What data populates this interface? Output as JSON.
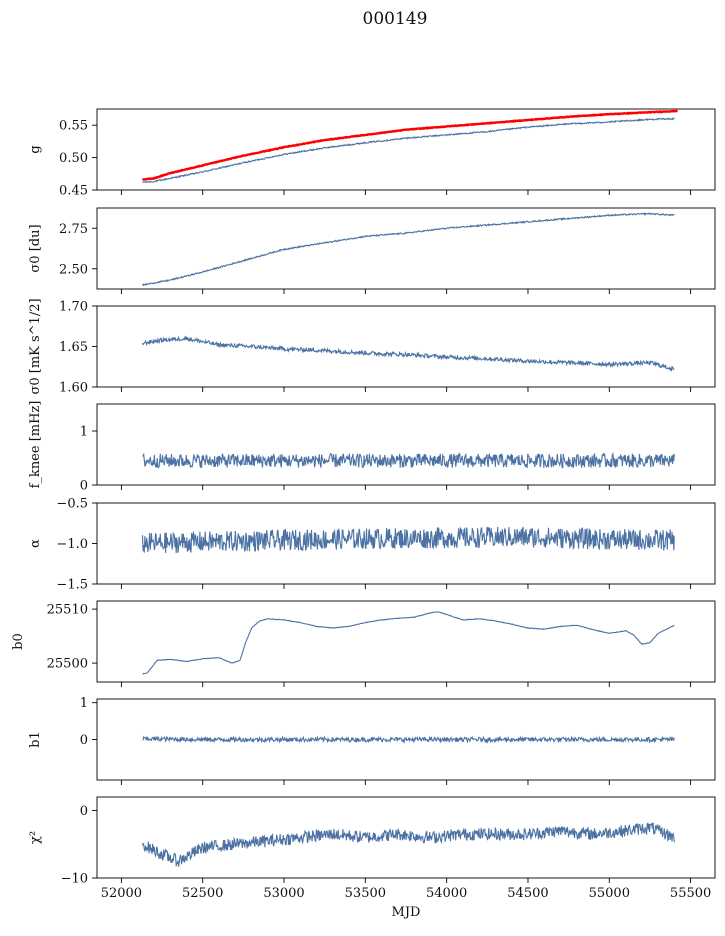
{
  "figure": {
    "title": "000149"
  },
  "colors": {
    "series": "#4c72a4",
    "fit": "#ff0000",
    "axis": "#000000"
  },
  "chart_data": [
    {
      "type": "line",
      "id": "g",
      "ylabel": "g",
      "ylim": [
        0.45,
        0.575
      ],
      "xlim": [
        51850,
        55650
      ],
      "yticks": [
        0.45,
        0.5,
        0.55
      ],
      "ytick_labels": [
        "0.45",
        "0.50",
        "0.55"
      ],
      "series": [
        {
          "color": "#4c72a4",
          "x": [
            52130,
            52200,
            52300,
            52500,
            52750,
            53000,
            53250,
            53500,
            53750,
            54000,
            54250,
            54500,
            54750,
            55000,
            55250,
            55400
          ],
          "y": [
            0.462,
            0.463,
            0.468,
            0.478,
            0.492,
            0.505,
            0.515,
            0.523,
            0.53,
            0.535,
            0.54,
            0.547,
            0.552,
            0.555,
            0.559,
            0.56
          ]
        },
        {
          "color": "#ff0000",
          "x": [
            52130,
            52200,
            52300,
            52500,
            52750,
            53000,
            53250,
            53500,
            53750,
            54000,
            54250,
            54500,
            54750,
            55000,
            55250,
            55420
          ],
          "y": [
            0.466,
            0.468,
            0.476,
            0.488,
            0.503,
            0.516,
            0.527,
            0.535,
            0.543,
            0.548,
            0.553,
            0.558,
            0.563,
            0.567,
            0.57,
            0.572
          ]
        }
      ]
    },
    {
      "type": "line",
      "id": "sigma0-du",
      "ylabel": "σ0 [du]",
      "ylim": [
        2.375,
        2.875
      ],
      "xlim": [
        51850,
        55650
      ],
      "yticks": [
        2.5,
        2.75
      ],
      "ytick_labels": [
        "2.50",
        "2.75"
      ],
      "series": [
        {
          "color": "#4c72a4",
          "x": [
            52130,
            52300,
            52500,
            52750,
            53000,
            53250,
            53500,
            53750,
            54000,
            54250,
            54500,
            54750,
            55000,
            55250,
            55400
          ],
          "y": [
            2.4,
            2.43,
            2.48,
            2.55,
            2.62,
            2.66,
            2.7,
            2.72,
            2.75,
            2.77,
            2.79,
            2.81,
            2.83,
            2.84,
            2.83
          ]
        }
      ]
    },
    {
      "type": "line",
      "id": "sigma0-mk",
      "ylabel": "σ0 [mK s^1/2]",
      "ylim": [
        1.6,
        1.7
      ],
      "xlim": [
        51850,
        55650
      ],
      "yticks": [
        1.6,
        1.65,
        1.7
      ],
      "ytick_labels": [
        "1.60",
        "1.65",
        "1.70"
      ],
      "series": [
        {
          "color": "#4c72a4",
          "x": [
            52130,
            52250,
            52400,
            52600,
            52800,
            53000,
            53250,
            53500,
            53750,
            54000,
            54250,
            54500,
            54750,
            55000,
            55250,
            55400
          ],
          "y": [
            1.654,
            1.658,
            1.66,
            1.652,
            1.65,
            1.647,
            1.645,
            1.642,
            1.64,
            1.637,
            1.635,
            1.632,
            1.63,
            1.628,
            1.63,
            1.622
          ]
        }
      ]
    },
    {
      "type": "line",
      "id": "fknee",
      "ylabel": "f_knee [mHz]",
      "ylim": [
        0,
        1.5
      ],
      "xlim": [
        51850,
        55650
      ],
      "yticks": [
        0,
        1
      ],
      "ytick_labels": [
        "0",
        "1"
      ],
      "series": [
        {
          "color": "#4c72a4",
          "x": [
            52130,
            52500,
            53000,
            53500,
            54000,
            54500,
            55000,
            55400
          ],
          "y": [
            0.45,
            0.45,
            0.45,
            0.45,
            0.45,
            0.45,
            0.45,
            0.45
          ]
        }
      ]
    },
    {
      "type": "line",
      "id": "alpha",
      "ylabel": "α",
      "ylim": [
        -1.5,
        -0.5
      ],
      "xlim": [
        51850,
        55650
      ],
      "yticks": [
        -1.5,
        -1.0,
        -0.5
      ],
      "ytick_labels": [
        "−1.5",
        "−1.0",
        "−0.5"
      ],
      "series": [
        {
          "color": "#4c72a4",
          "x": [
            52130,
            52500,
            53000,
            53500,
            54000,
            54500,
            55000,
            55400
          ],
          "y": [
            -1.0,
            -0.98,
            -0.96,
            -0.94,
            -0.93,
            -0.92,
            -0.95,
            -0.96
          ]
        }
      ]
    },
    {
      "type": "line",
      "id": "b0",
      "ylabel": "b0",
      "ylim": [
        25496.5,
        25511.5
      ],
      "xlim": [
        51850,
        55650
      ],
      "yticks": [
        25500,
        25510
      ],
      "ytick_labels": [
        "25500",
        "25510"
      ],
      "series": [
        {
          "color": "#4c72a4",
          "x": [
            52130,
            52160,
            52220,
            52300,
            52400,
            52500,
            52600,
            52680,
            52730,
            52760,
            52800,
            52850,
            52900,
            53000,
            53100,
            53200,
            53300,
            53400,
            53500,
            53600,
            53700,
            53800,
            53900,
            53950,
            54000,
            54100,
            54200,
            54300,
            54400,
            54500,
            54600,
            54700,
            54800,
            54900,
            55000,
            55100,
            55150,
            55200,
            55250,
            55300,
            55400
          ],
          "y": [
            25498.0,
            25498.2,
            25500.5,
            25500.7,
            25500.3,
            25500.8,
            25501.0,
            25500.0,
            25500.5,
            25503.5,
            25506.5,
            25507.8,
            25508.2,
            25508.0,
            25507.5,
            25506.8,
            25506.5,
            25506.8,
            25507.5,
            25508.0,
            25508.3,
            25508.5,
            25509.3,
            25509.5,
            25509.0,
            25508.0,
            25508.2,
            25507.8,
            25507.2,
            25506.5,
            25506.3,
            25506.8,
            25507.0,
            25506.2,
            25505.5,
            25506.0,
            25505.2,
            25503.5,
            25503.8,
            25505.5,
            25507.0
          ]
        }
      ]
    },
    {
      "type": "line",
      "id": "b1",
      "ylabel": "b1",
      "ylim": [
        -1.1,
        1.1
      ],
      "xlim": [
        51850,
        55650
      ],
      "yticks": [
        0,
        1
      ],
      "ytick_labels": [
        "0",
        "1"
      ],
      "series": [
        {
          "color": "#4c72a4",
          "x": [
            52130,
            52500,
            53000,
            53500,
            54000,
            54500,
            55000,
            55400
          ],
          "y": [
            0.02,
            0.0,
            0.0,
            0.0,
            0.0,
            0.0,
            0.0,
            0.0
          ]
        }
      ]
    },
    {
      "type": "line",
      "id": "chi2",
      "ylabel": "χ²",
      "ylim": [
        -10,
        2
      ],
      "xlim": [
        51850,
        55650
      ],
      "yticks": [
        -10,
        0
      ],
      "ytick_labels": [
        "−10",
        "0"
      ],
      "xlabel": "MJD",
      "xticks": [
        52000,
        52500,
        53000,
        53500,
        54000,
        54500,
        55000,
        55500
      ],
      "xtick_labels": [
        "52000",
        "52500",
        "53000",
        "53500",
        "54000",
        "54500",
        "55000",
        "55500"
      ],
      "series": [
        {
          "color": "#4c72a4",
          "x": [
            52130,
            52250,
            52350,
            52500,
            52700,
            52900,
            53100,
            53300,
            53500,
            53700,
            53900,
            54100,
            54300,
            54500,
            54700,
            54900,
            55100,
            55250,
            55400
          ],
          "y": [
            -5.0,
            -6.5,
            -7.5,
            -5.5,
            -5.0,
            -4.5,
            -4.0,
            -3.5,
            -4.0,
            -3.5,
            -4.0,
            -3.5,
            -3.5,
            -3.5,
            -3.0,
            -3.5,
            -3.0,
            -2.5,
            -4.0
          ]
        }
      ]
    }
  ]
}
